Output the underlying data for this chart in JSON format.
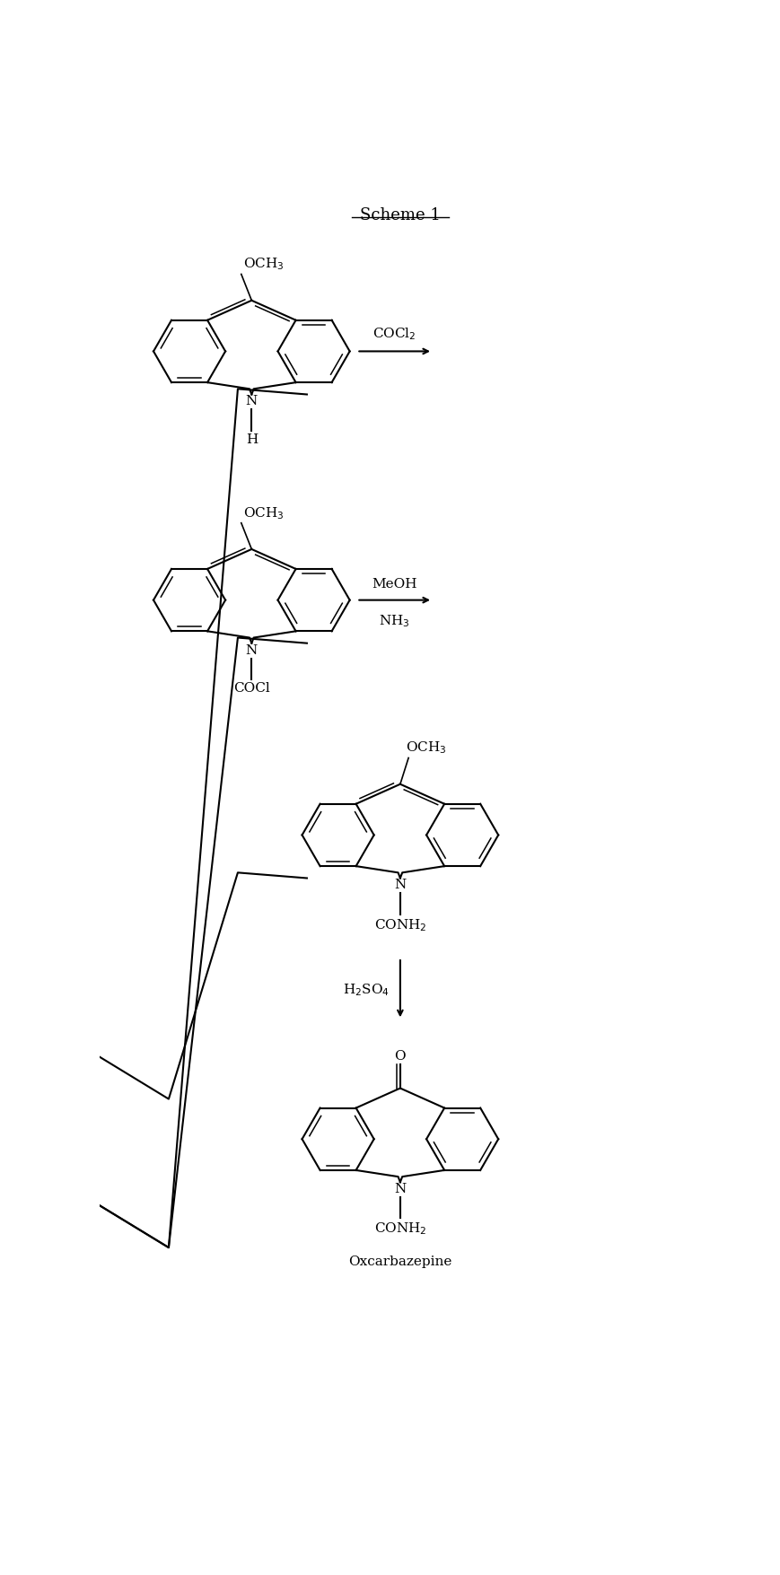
{
  "title": "Scheme 1",
  "background_color": "#ffffff",
  "text_color": "#000000",
  "reagent1": "COCl$_2$",
  "reagent2_line1": "MeOH",
  "reagent2_line2": "NH$_3$",
  "reagent3": "H$_2$SO$_4$",
  "molecule4_label": "Oxcarbazepine"
}
